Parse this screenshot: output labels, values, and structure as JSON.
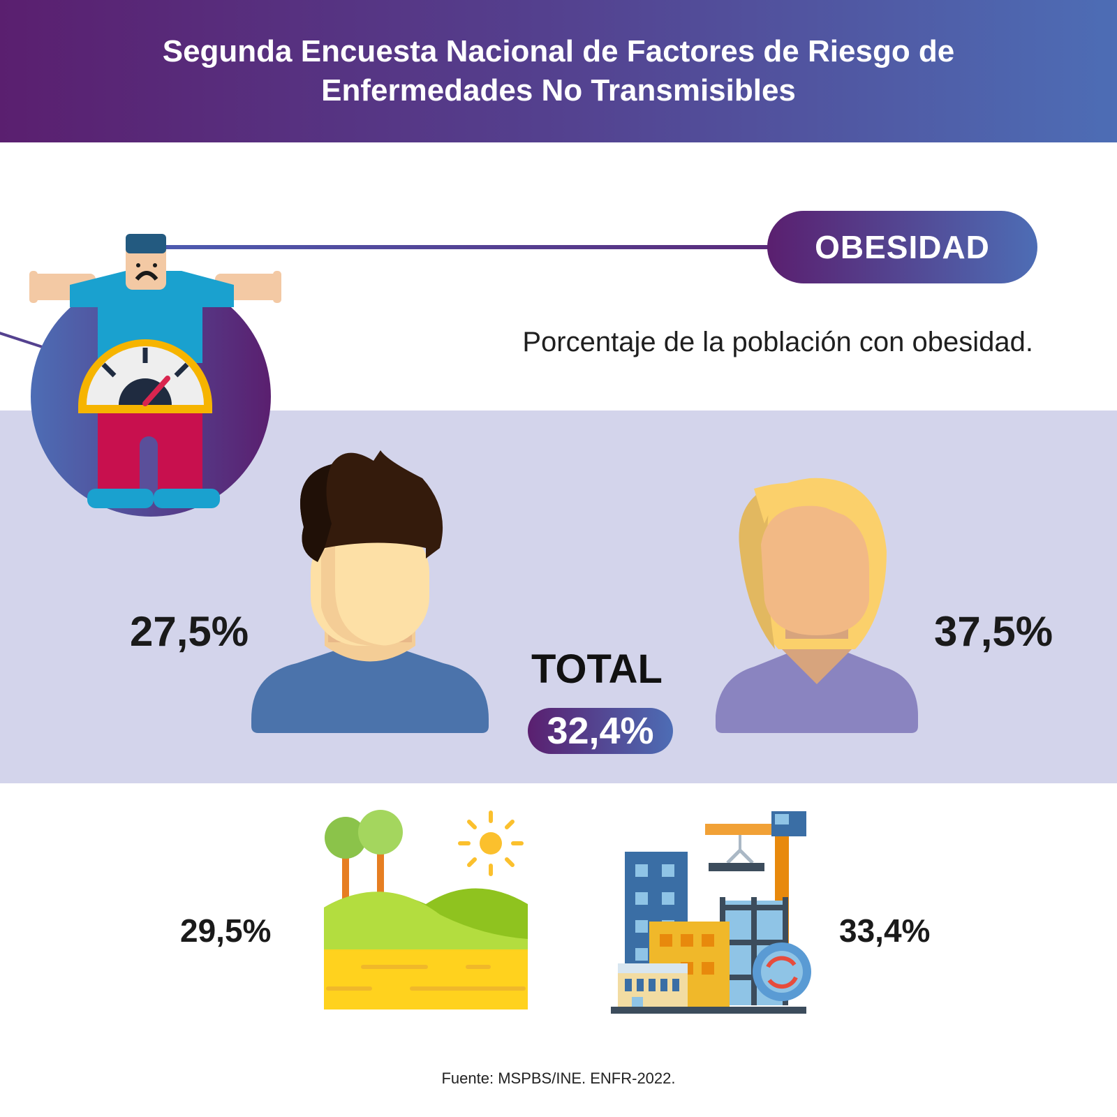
{
  "header": {
    "title": "Segunda Encuesta Nacional de Factores de Riesgo de Enfermedades No Transmisibles"
  },
  "topic": {
    "label": "OBESIDAD",
    "subtitle": "Porcentaje de la población con obesidad."
  },
  "stats": {
    "male": "27,5%",
    "female": "37,5%",
    "total_label": "TOTAL",
    "total": "32,4%",
    "rural": "29,5%",
    "urban": "33,4%"
  },
  "icons": {
    "scale_person": "obesity-scale-icon",
    "male": "male-avatar-icon",
    "female": "female-avatar-icon",
    "rural": "rural-landscape-icon",
    "urban": "urban-city-icon"
  },
  "colors": {
    "header_start": "#5a1f6f",
    "header_end": "#4d6db5",
    "band": "#d3d4eb",
    "text": "#1a1a1a"
  },
  "source": "Fuente: MSPBS/INE. ENFR-2022."
}
